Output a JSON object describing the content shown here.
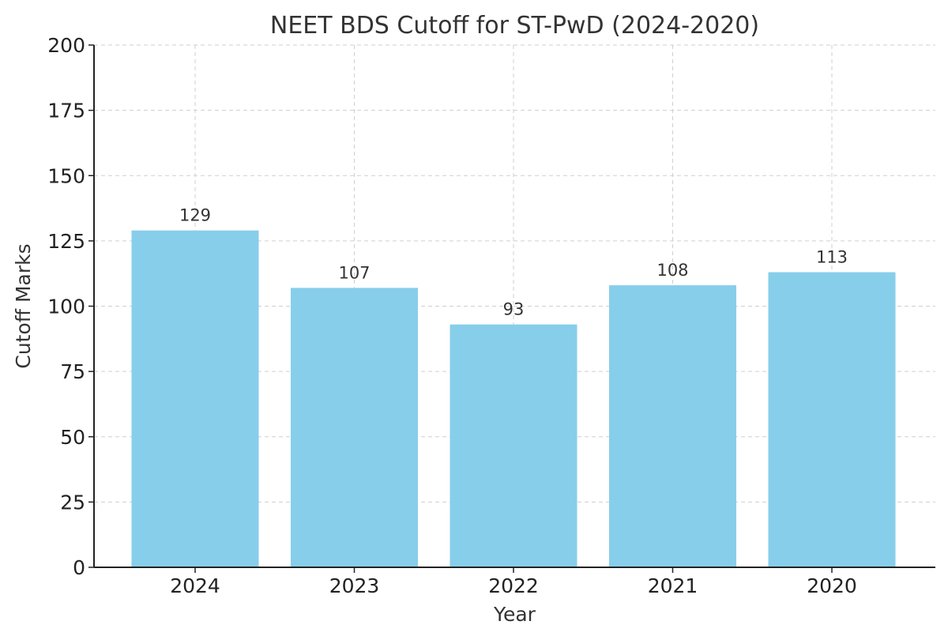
{
  "chart_data": {
    "type": "bar",
    "title": "NEET BDS Cutoff for ST-PwD (2024-2020)",
    "xlabel": "Year",
    "ylabel": "Cutoff Marks",
    "categories": [
      "2024",
      "2023",
      "2022",
      "2021",
      "2020"
    ],
    "values": [
      129,
      107,
      93,
      108,
      113
    ],
    "ylim": [
      0,
      200
    ],
    "yticks": [
      0,
      25,
      50,
      75,
      100,
      125,
      150,
      175,
      200
    ],
    "grid": true,
    "legend": "none",
    "colors": {
      "bar": "#87ceeb",
      "grid": "#cfcfcf",
      "axis": "#222222",
      "text": "#333333"
    }
  }
}
